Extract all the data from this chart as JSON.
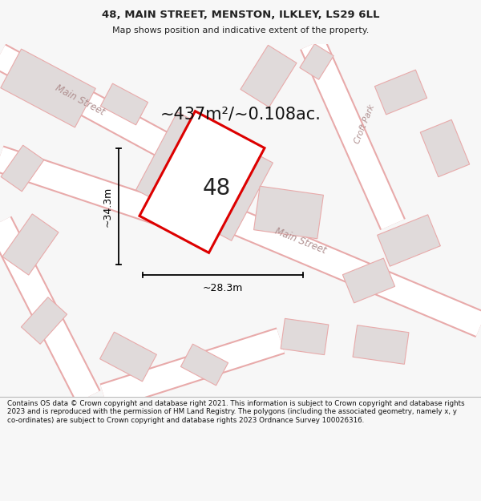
{
  "title": "48, MAIN STREET, MENSTON, ILKLEY, LS29 6LL",
  "subtitle": "Map shows position and indicative extent of the property.",
  "area_text": "~437m²/~0.108ac.",
  "number_label": "48",
  "width_label": "~28.3m",
  "height_label": "~34.3m",
  "footer": "Contains OS data © Crown copyright and database right 2021. This information is subject to Crown copyright and database rights 2023 and is reproduced with the permission of HM Land Registry. The polygons (including the associated geometry, namely x, y co-ordinates) are subject to Crown copyright and database rights 2023 Ordnance Survey 100026316.",
  "bg_color": "#f7f7f7",
  "map_bg": "#f8f8f8",
  "footer_bg": "#ffffff",
  "road_color": "#ffffff",
  "road_stroke": "#e8aaaa",
  "building_fill": "#e0dada",
  "building_stroke": "#e8aaaa",
  "plot_fill": "#ffffff",
  "plot_stroke": "#dd0000",
  "road_label_color": "#b09090",
  "dim_color": "#111111",
  "text_color": "#222222"
}
